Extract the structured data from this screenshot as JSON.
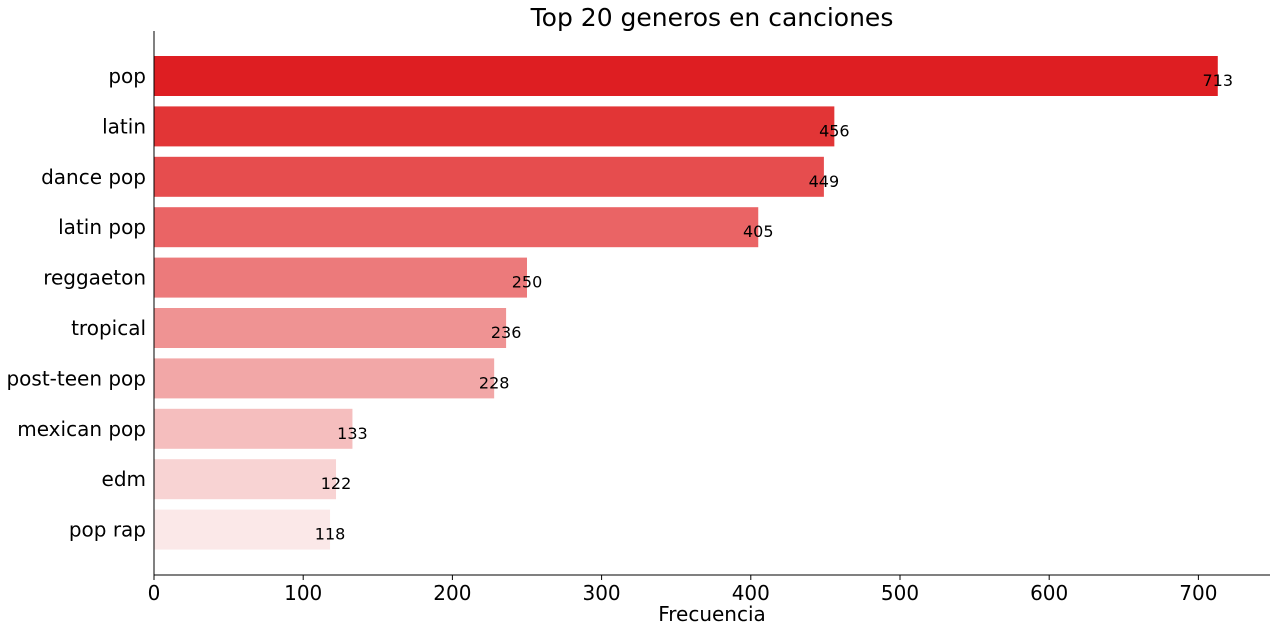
{
  "chart_data": {
    "type": "bar",
    "orientation": "horizontal",
    "title": "Top 20 generos en canciones",
    "xlabel": "Frecuencia",
    "ylabel": "",
    "categories": [
      "pop",
      "latin",
      "dance pop",
      "latin pop",
      "reggaeton",
      "tropical",
      "post-teen pop",
      "mexican pop",
      "edm",
      "pop rap"
    ],
    "values": [
      713,
      456,
      449,
      405,
      250,
      236,
      228,
      133,
      122,
      118
    ],
    "colors": [
      "#de1e22",
      "#e23536",
      "#e64d4e",
      "#ea6465",
      "#ec7a7b",
      "#ef9393",
      "#f2a7a7",
      "#f5bebe",
      "#f8d3d3",
      "#fbe8e8"
    ],
    "xlim": [
      0,
      748
    ],
    "xticks": [
      0,
      100,
      200,
      300,
      400,
      500,
      600,
      700
    ],
    "grid": false,
    "legend": "none"
  }
}
